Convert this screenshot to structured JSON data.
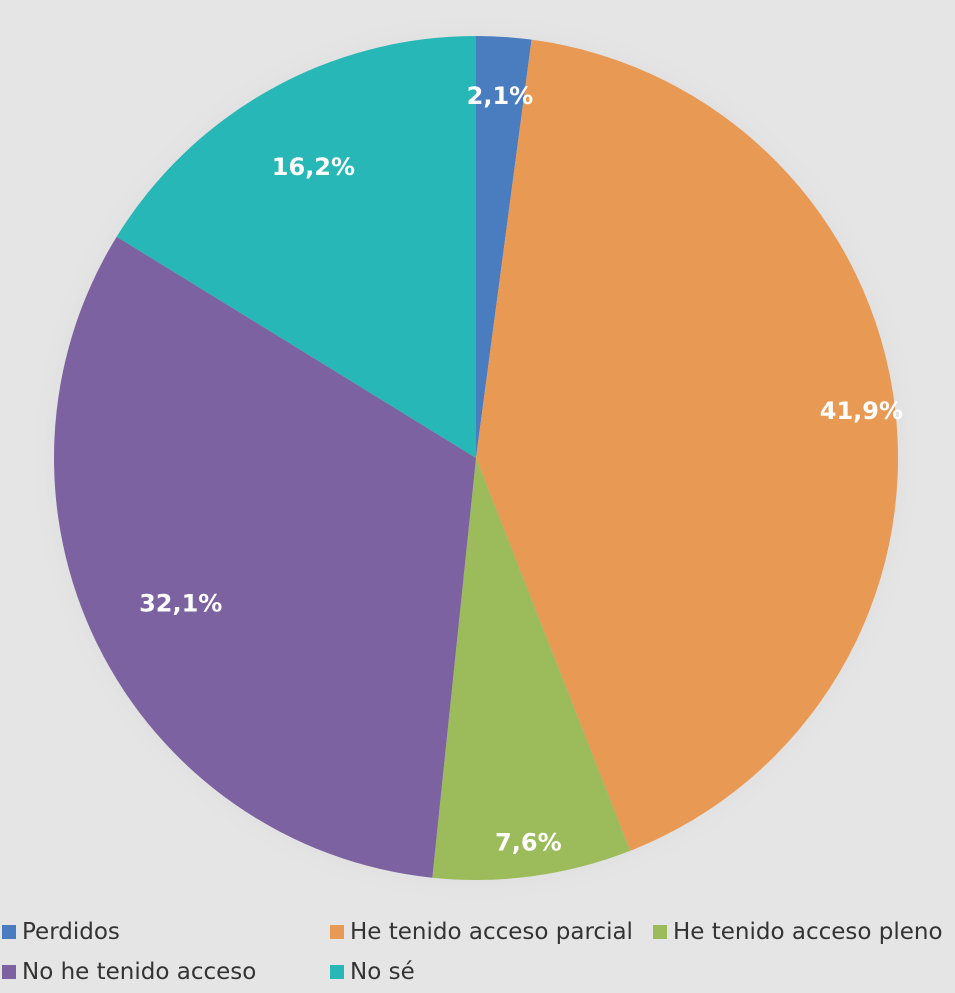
{
  "chart_data": {
    "type": "pie",
    "title": "",
    "categories": [
      "Perdidos",
      "He tenido acceso parcial",
      "He tenido acceso pleno",
      "No he tenido acceso",
      "No sé"
    ],
    "values": [
      2.1,
      41.9,
      7.6,
      32.1,
      16.2
    ],
    "value_labels": [
      "2,1%",
      "41,9%",
      "7,6%",
      "32,1%",
      "16,2%"
    ],
    "colors": [
      "#4a7cc0",
      "#e89a55",
      "#9cbb5a",
      "#7c62a0",
      "#27b7b6"
    ],
    "start": "top",
    "direction": "clockwise",
    "legend_position": "bottom"
  }
}
